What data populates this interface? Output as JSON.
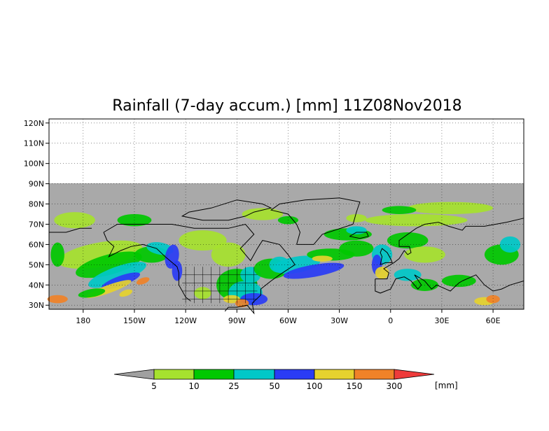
{
  "title": "Rainfall (7-day accum.) [mm] 11Z08Nov2018",
  "map": {
    "lat_labels": [
      "120N",
      "110N",
      "100N",
      "90N",
      "80N",
      "70N",
      "60N",
      "50N",
      "40N",
      "30N"
    ],
    "lon_labels": [
      "180",
      "150W",
      "120W",
      "90W",
      "60W",
      "30W",
      "0",
      "30E",
      "60E"
    ],
    "no_data_color": "#b0b0b0",
    "ocean_land_base_color": "#a9a9a9",
    "coastline_color": "#000000"
  },
  "colorbar": {
    "unit": "[mm]",
    "tick_labels": [
      "5",
      "10",
      "25",
      "50",
      "100",
      "150",
      "300"
    ],
    "colors": [
      "#a0a0a0",
      "#a6e22e",
      "#00c800",
      "#00c8c8",
      "#2a3cf5",
      "#e6d22e",
      "#f08228",
      "#ee3b3b"
    ],
    "bin_labels": [
      "<5",
      "5-10",
      "10-25",
      "25-50",
      "50-100",
      "100-150",
      "150-300",
      ">300"
    ]
  }
}
